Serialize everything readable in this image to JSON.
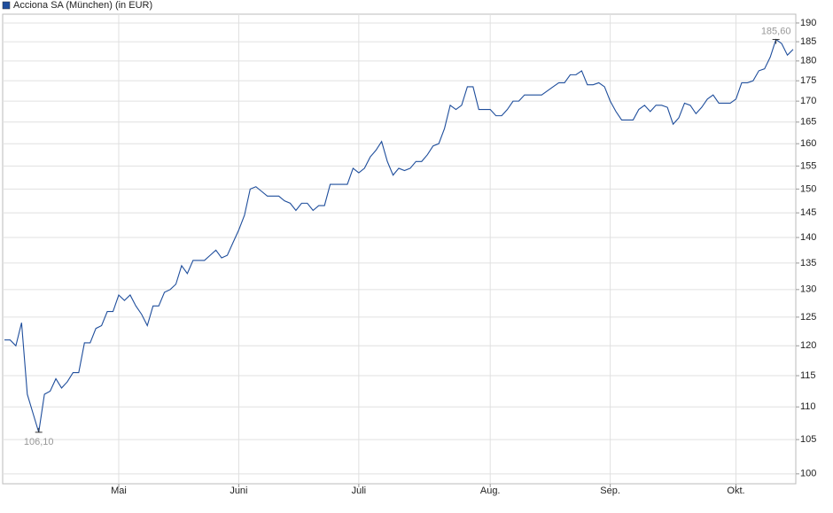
{
  "chart_data": {
    "type": "line",
    "series": [
      {
        "name": "Acciona SA (München) (in EUR)",
        "color": "#1f4e9c",
        "values": [
          121,
          121,
          120,
          124,
          112,
          109,
          106.1,
          112,
          112.5,
          114.5,
          113,
          114,
          115.5,
          115.5,
          120.5,
          120.5,
          123,
          123.5,
          126,
          126,
          129,
          128,
          129,
          127,
          125.5,
          123.5,
          127,
          127,
          129.5,
          130,
          131,
          134.5,
          133,
          135.5,
          135.5,
          135.5,
          136.5,
          137.5,
          136,
          136.5,
          139,
          141.5,
          144.5,
          150,
          150.5,
          149.5,
          148.5,
          148.5,
          148.5,
          147.5,
          147,
          145.5,
          147,
          147,
          145.5,
          146.5,
          146.5,
          151,
          151,
          151,
          151,
          154.5,
          153.5,
          154.5,
          157,
          158.5,
          160.5,
          156,
          153,
          154.5,
          154,
          154.5,
          156,
          156,
          157.5,
          159.5,
          160,
          163.5,
          169,
          168,
          169,
          173.5,
          173.5,
          168,
          168,
          168,
          166.5,
          166.5,
          168,
          170,
          170,
          171.5,
          171.5,
          171.5,
          171.5,
          172.5,
          173.5,
          174.5,
          174.5,
          176.5,
          176.5,
          177.5,
          174,
          174,
          174.5,
          173.5,
          170,
          167.5,
          165.5,
          165.5,
          165.5,
          168,
          169,
          167.5,
          169,
          169,
          168.5,
          164.5,
          166,
          169.5,
          169,
          167,
          168.5,
          170.5,
          171.5,
          169.5,
          169.5,
          169.5,
          170.5,
          174.5,
          174.5,
          175,
          177.5,
          178,
          181,
          185.6,
          184.5,
          181.5,
          183
        ],
        "value_labels": [
          null,
          null,
          null,
          null,
          null,
          null,
          "106,10",
          null,
          null,
          null,
          null,
          null,
          null,
          null,
          null,
          null,
          null,
          null,
          null,
          null,
          null,
          null,
          null,
          null,
          null,
          null,
          null,
          null,
          null,
          null,
          null,
          null,
          null,
          null,
          null,
          null,
          null,
          null,
          null,
          null,
          null,
          null,
          null,
          null,
          null,
          null,
          null,
          null,
          null,
          null,
          null,
          null,
          null,
          null,
          null,
          null,
          null,
          null,
          null,
          null,
          null,
          null,
          null,
          null,
          null,
          null,
          null,
          null,
          null,
          null,
          null,
          null,
          null,
          null,
          null,
          null,
          null,
          null,
          null,
          null,
          null,
          null,
          null,
          null,
          null,
          null,
          null,
          null,
          null,
          null,
          null,
          null,
          null,
          null,
          null,
          null,
          null,
          null,
          null,
          null,
          null,
          null,
          null,
          null,
          null,
          null,
          null,
          null,
          null,
          null,
          null,
          null,
          null,
          null,
          null,
          null,
          null,
          null,
          null,
          null,
          null,
          null,
          null,
          null,
          null,
          null,
          null,
          null,
          null,
          null,
          null,
          null,
          null,
          null,
          null,
          "185,60",
          null,
          null,
          null
        ]
      }
    ],
    "categories": [
      null,
      null,
      null,
      null,
      null,
      null,
      null,
      null,
      null,
      null,
      null,
      null,
      null,
      null,
      null,
      null,
      null,
      null,
      null,
      null,
      "Mai",
      null,
      null,
      null,
      null,
      null,
      null,
      null,
      null,
      null,
      null,
      null,
      null,
      null,
      null,
      null,
      null,
      null,
      null,
      null,
      null,
      "Juni",
      null,
      null,
      null,
      null,
      null,
      null,
      null,
      null,
      null,
      null,
      null,
      null,
      null,
      null,
      null,
      null,
      null,
      null,
      null,
      null,
      "Juli",
      null,
      null,
      null,
      null,
      null,
      null,
      null,
      null,
      null,
      null,
      null,
      null,
      null,
      null,
      null,
      null,
      null,
      null,
      null,
      null,
      null,
      null,
      "Aug.",
      null,
      null,
      null,
      null,
      null,
      null,
      null,
      null,
      null,
      null,
      null,
      null,
      null,
      null,
      null,
      null,
      null,
      null,
      null,
      null,
      "Sep.",
      null,
      null,
      null,
      null,
      null,
      null,
      null,
      null,
      null,
      null,
      null,
      null,
      null,
      null,
      null,
      null,
      null,
      null,
      null,
      null,
      null,
      "Okt.",
      null,
      null,
      null,
      null,
      null,
      null,
      null,
      null,
      null,
      null
    ],
    "ylim": [
      98.6,
      192.4
    ],
    "yticks": [
      100,
      105,
      110,
      115,
      120,
      125,
      130,
      135,
      140,
      145,
      150,
      155,
      160,
      165,
      170,
      175,
      180,
      185,
      190
    ],
    "log_y": true,
    "grid": true,
    "legend": "top-left"
  }
}
